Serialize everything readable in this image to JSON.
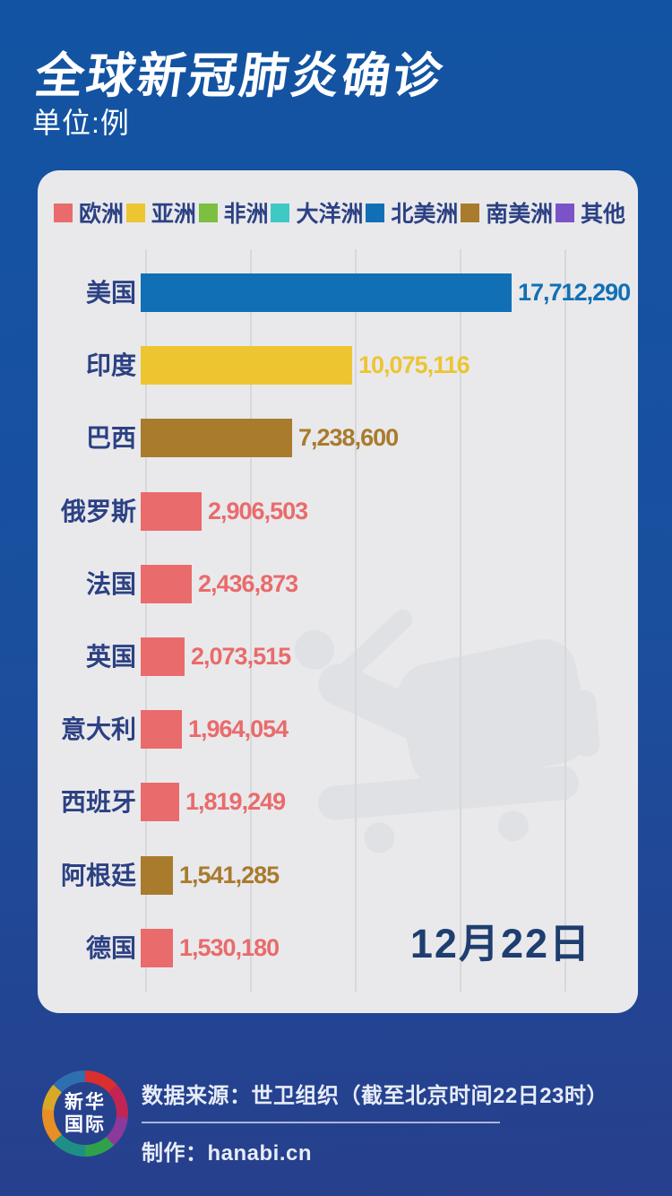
{
  "header": {
    "title": "全球新冠肺炎确诊",
    "unit_label": "单位:例"
  },
  "legend": [
    {
      "label": "欧洲",
      "color": "#e96b6b"
    },
    {
      "label": "亚洲",
      "color": "#ecc531"
    },
    {
      "label": "非洲",
      "color": "#7cbf41"
    },
    {
      "label": "大洋洲",
      "color": "#3ec9c5"
    },
    {
      "label": "北美洲",
      "color": "#1170b5"
    },
    {
      "label": "南美洲",
      "color": "#a87b2d"
    },
    {
      "label": "其他",
      "color": "#7c52c8"
    }
  ],
  "chart_data": {
    "type": "bar",
    "orientation": "horizontal",
    "title": "全球新冠肺炎确诊",
    "unit": "例",
    "date_label": "12月22日",
    "xlim": [
      0,
      20000000
    ],
    "gridline_interval": 5000000,
    "grid": true,
    "legend_position": "top",
    "categories": [
      "美国",
      "印度",
      "巴西",
      "俄罗斯",
      "法国",
      "英国",
      "意大利",
      "西班牙",
      "阿根廷",
      "德国"
    ],
    "values": [
      17712290,
      10075116,
      7238600,
      2906503,
      2436873,
      2073515,
      1964054,
      1819249,
      1541285,
      1530180
    ],
    "value_labels": [
      "17,712,290",
      "10,075,116",
      "7,238,600",
      "2,906,503",
      "2,436,873",
      "2,073,515",
      "1,964,054",
      "1,819,249",
      "1,541,285",
      "1,530,180"
    ],
    "continents": [
      "北美洲",
      "亚洲",
      "南美洲",
      "欧洲",
      "欧洲",
      "欧洲",
      "欧洲",
      "欧洲",
      "南美洲",
      "欧洲"
    ],
    "bar_colors": [
      "#1170b5",
      "#ecc531",
      "#a87b2d",
      "#e96b6b",
      "#e96b6b",
      "#e96b6b",
      "#e96b6b",
      "#e96b6b",
      "#a87b2d",
      "#e96b6b"
    ]
  },
  "footer": {
    "logo_line1": "新华",
    "logo_line2": "国际",
    "source": "数据来源：世卫组织（截至北京时间22日23时）",
    "credit": "制作：hanabi.cn"
  },
  "colors": {
    "page_bg_top": "#1254a3",
    "page_bg_bottom": "#273f8c",
    "panel_bg": "#e9e9ec",
    "label_navy": "#2c4183",
    "date_navy": "#1e3e70",
    "gridline": "#d7d8da",
    "watermark": "#dfe1e4",
    "title_white": "#ffffff",
    "footer_text": "#e7ecf6",
    "divider": "rgba(255,255,255,0.62)",
    "logo_inner_bg": "#26418e"
  }
}
